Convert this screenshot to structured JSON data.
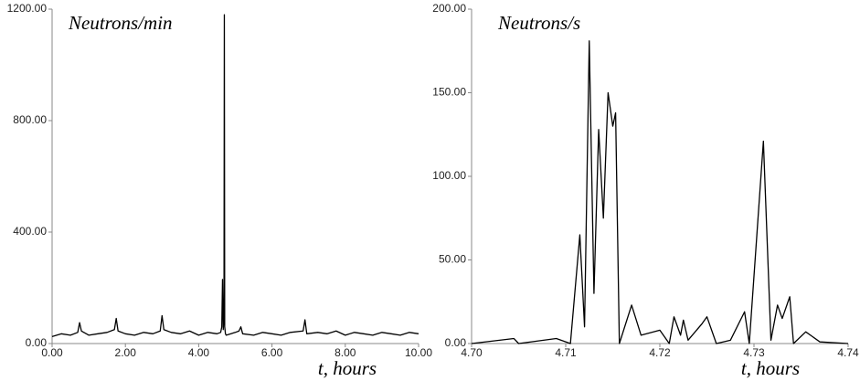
{
  "chart_data": [
    {
      "type": "line",
      "ylabel": "Neutrons/min",
      "xlabel": "t, hours",
      "color": "#000000",
      "x": [
        0,
        0.25,
        0.5,
        0.7,
        0.75,
        0.8,
        1.0,
        1.25,
        1.5,
        1.7,
        1.75,
        1.8,
        2.0,
        2.25,
        2.5,
        2.75,
        2.95,
        3.0,
        3.05,
        3.25,
        3.5,
        3.75,
        4.0,
        4.25,
        4.5,
        4.6,
        4.63,
        4.65,
        4.67,
        4.69,
        4.7,
        4.71,
        4.73,
        4.75,
        5.0,
        5.1,
        5.15,
        5.2,
        5.5,
        5.75,
        6.0,
        6.25,
        6.5,
        6.85,
        6.9,
        6.95,
        7.25,
        7.5,
        7.75,
        8.0,
        8.25,
        8.5,
        8.75,
        9.0,
        9.25,
        9.5,
        9.75,
        10.0
      ],
      "values": [
        25,
        35,
        30,
        40,
        75,
        45,
        30,
        35,
        40,
        50,
        90,
        45,
        35,
        30,
        40,
        35,
        45,
        100,
        50,
        40,
        35,
        45,
        30,
        40,
        35,
        40,
        60,
        230,
        50,
        100,
        1180,
        60,
        35,
        30,
        40,
        45,
        60,
        35,
        30,
        40,
        35,
        30,
        40,
        45,
        85,
        35,
        40,
        35,
        45,
        30,
        40,
        35,
        30,
        40,
        35,
        30,
        40,
        35
      ],
      "xlim": [
        0,
        10
      ],
      "ylim": [
        0,
        1200
      ],
      "xticks": [
        {
          "value": 0,
          "label": "0.00"
        },
        {
          "value": 2,
          "label": "2.00"
        },
        {
          "value": 4,
          "label": "4.00"
        },
        {
          "value": 6,
          "label": "6.00"
        },
        {
          "value": 8,
          "label": "8.00"
        },
        {
          "value": 10,
          "label": "10.00"
        }
      ],
      "yticks": [
        {
          "value": 0,
          "label": "0.00"
        },
        {
          "value": 400,
          "label": "400.00"
        },
        {
          "value": 800,
          "label": "800.00"
        },
        {
          "value": 1200,
          "label": "1200.00"
        }
      ]
    },
    {
      "type": "line",
      "ylabel": "Neutrons/s",
      "xlabel": "t, hours",
      "color": "#000000",
      "x": [
        4.7,
        4.7045,
        4.705,
        4.709,
        4.7105,
        4.7115,
        4.712,
        4.7125,
        4.713,
        4.7135,
        4.714,
        4.7145,
        4.715,
        4.7153,
        4.7157,
        4.717,
        4.718,
        4.72,
        4.721,
        4.7215,
        4.7222,
        4.7225,
        4.723,
        4.7245,
        4.725,
        4.726,
        4.7275,
        4.729,
        4.7295,
        4.731,
        4.7318,
        4.7325,
        4.733,
        4.7338,
        4.7342,
        4.7355,
        4.737,
        4.74
      ],
      "values": [
        0,
        3,
        0,
        3,
        0,
        65,
        10,
        181,
        30,
        128,
        75,
        150,
        130,
        138,
        0,
        23,
        5,
        8,
        0,
        16,
        5,
        14,
        2,
        12,
        16,
        0,
        2,
        19,
        0,
        121,
        2,
        23,
        15,
        28,
        0,
        7,
        1,
        0
      ],
      "xlim": [
        4.7,
        4.74
      ],
      "ylim": [
        0,
        200
      ],
      "xticks": [
        {
          "value": 4.7,
          "label": "4.70"
        },
        {
          "value": 4.71,
          "label": "4.71"
        },
        {
          "value": 4.72,
          "label": "4.72"
        },
        {
          "value": 4.73,
          "label": "4.73"
        },
        {
          "value": 4.74,
          "label": "4.74"
        }
      ],
      "yticks": [
        {
          "value": 0,
          "label": "0.00"
        },
        {
          "value": 50,
          "label": "50.00"
        },
        {
          "value": 100,
          "label": "100.00"
        },
        {
          "value": 150,
          "label": "150.00"
        },
        {
          "value": 200,
          "label": "200.00"
        }
      ]
    }
  ]
}
